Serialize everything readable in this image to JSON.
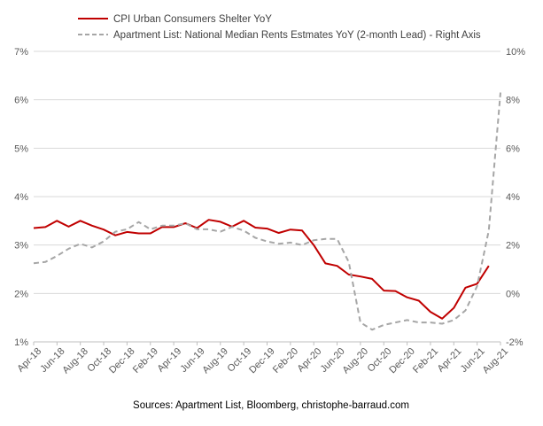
{
  "chart_data": {
    "type": "line",
    "title": "",
    "xlabel": "",
    "ylabel": "",
    "source": "Sources: Apartment List, Bloomberg, christophe-barraud.com",
    "legend_position": "top",
    "grid": "horizontal",
    "x_tick_labels": [
      "Apr-18",
      "Jun-18",
      "Aug-18",
      "Oct-18",
      "Dec-18",
      "Feb-19",
      "Apr-19",
      "Jun-19",
      "Aug-19",
      "Oct-19",
      "Dec-19",
      "Feb-20",
      "Apr-20",
      "Jun-20",
      "Aug-20",
      "Oct-20",
      "Dec-20",
      "Feb-21",
      "Apr-21",
      "Jun-21",
      "Aug-21"
    ],
    "x": [
      "Apr-18",
      "May-18",
      "Jun-18",
      "Jul-18",
      "Aug-18",
      "Sep-18",
      "Oct-18",
      "Nov-18",
      "Dec-18",
      "Jan-19",
      "Feb-19",
      "Mar-19",
      "Apr-19",
      "May-19",
      "Jun-19",
      "Jul-19",
      "Aug-19",
      "Sep-19",
      "Oct-19",
      "Nov-19",
      "Dec-19",
      "Jan-20",
      "Feb-20",
      "Mar-20",
      "Apr-20",
      "May-20",
      "Jun-20",
      "Jul-20",
      "Aug-20",
      "Sep-20",
      "Oct-20",
      "Nov-20",
      "Dec-20",
      "Jan-21",
      "Feb-21",
      "Mar-21",
      "Apr-21",
      "May-21",
      "Jun-21",
      "Jul-21",
      "Aug-21"
    ],
    "y_left": {
      "ticks": [
        "1%",
        "2%",
        "3%",
        "4%",
        "5%",
        "6%",
        "7%"
      ],
      "range": [
        1,
        7
      ]
    },
    "y_right": {
      "ticks": [
        "-2%",
        "0%",
        "2%",
        "4%",
        "6%",
        "8%",
        "10%"
      ],
      "range": [
        -2,
        10
      ]
    },
    "series": [
      {
        "name": "CPI Urban Consumers Shelter YoY",
        "axis": "left",
        "color": "#c00000",
        "dash": "solid",
        "values": [
          3.35,
          3.37,
          3.5,
          3.38,
          3.5,
          3.4,
          3.32,
          3.2,
          3.27,
          3.24,
          3.24,
          3.37,
          3.37,
          3.45,
          3.35,
          3.52,
          3.48,
          3.38,
          3.5,
          3.36,
          3.34,
          3.25,
          3.32,
          3.3,
          3.0,
          2.62,
          2.57,
          2.39,
          2.35,
          2.3,
          2.06,
          2.05,
          1.92,
          1.85,
          1.62,
          1.48,
          1.7,
          2.12,
          2.2,
          2.57,
          null
        ]
      },
      {
        "name": "Apartment List: National Median Rents Estmates YoY (2-month Lead) - Right Axis",
        "axis": "right",
        "color": "#a6a6a6",
        "dash": "dashed",
        "values": [
          1.25,
          1.3,
          1.55,
          1.85,
          2.05,
          1.9,
          2.15,
          2.55,
          2.65,
          2.95,
          2.65,
          2.8,
          2.8,
          2.9,
          2.65,
          2.65,
          2.55,
          2.75,
          2.6,
          2.3,
          2.15,
          2.05,
          2.1,
          2.0,
          2.2,
          2.25,
          2.25,
          1.3,
          -1.2,
          -1.5,
          -1.3,
          -1.2,
          -1.1,
          -1.2,
          -1.2,
          -1.25,
          -1.1,
          -0.7,
          0.3,
          2.6,
          8.3
        ]
      }
    ]
  }
}
